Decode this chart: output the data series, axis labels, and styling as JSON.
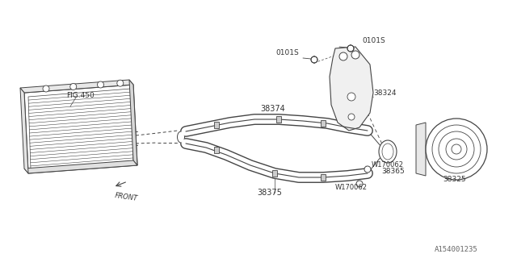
{
  "bg_color": "#ffffff",
  "line_color": "#444444",
  "label_color": "#333333",
  "fig_width": 6.4,
  "fig_height": 3.2,
  "dpi": 100,
  "watermark": "A154001235",
  "labels": {
    "fig450": "FIG.450",
    "p38324": "38324",
    "p38325": "38325",
    "p38374": "38374",
    "p38375": "38375",
    "p38365": "38365",
    "w170062a": "W170062",
    "w170062b": "W170062",
    "p0101s_left": "0101S",
    "p0101s_right": "0101S",
    "front": "FRONT"
  }
}
